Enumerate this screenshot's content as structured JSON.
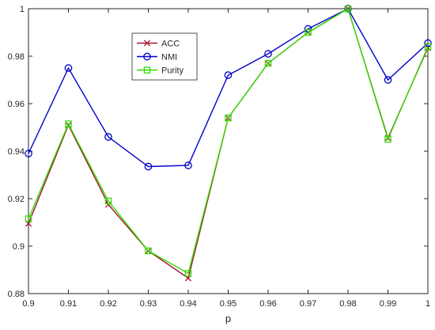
{
  "chart_data": {
    "type": "line",
    "title": "",
    "xlabel": "p",
    "ylabel": "",
    "x": [
      0.9,
      0.91,
      0.92,
      0.93,
      0.94,
      0.95,
      0.96,
      0.97,
      0.98,
      0.99,
      1
    ],
    "xlim": [
      0.9,
      1
    ],
    "ylim": [
      0.88,
      1
    ],
    "xticks": [
      "0.9",
      "0.91",
      "0.92",
      "0.93",
      "0.94",
      "0.95",
      "0.96",
      "0.97",
      "0.98",
      "0.99",
      "1"
    ],
    "yticks": [
      "0.88",
      "0.9",
      "0.92",
      "0.94",
      "0.96",
      "0.98",
      "1"
    ],
    "grid": false,
    "legend_position": "upper-left",
    "series": [
      {
        "name": "ACC",
        "color": "#a2142f",
        "marker": "x",
        "values": [
          0.9095,
          0.951,
          0.9175,
          0.898,
          0.8865,
          0.954,
          0.977,
          0.99,
          1.0,
          0.9455,
          0.9835
        ]
      },
      {
        "name": "NMI",
        "color": "#0000cc",
        "marker": "circle",
        "values": [
          0.939,
          0.975,
          0.946,
          0.9335,
          0.934,
          0.972,
          0.981,
          0.9915,
          1.0,
          0.97,
          0.9855
        ]
      },
      {
        "name": "Purity",
        "color": "#33dd00",
        "marker": "square",
        "values": [
          0.9115,
          0.9515,
          0.919,
          0.898,
          0.8885,
          0.954,
          0.977,
          0.99,
          1.0,
          0.945,
          0.984
        ]
      }
    ]
  }
}
